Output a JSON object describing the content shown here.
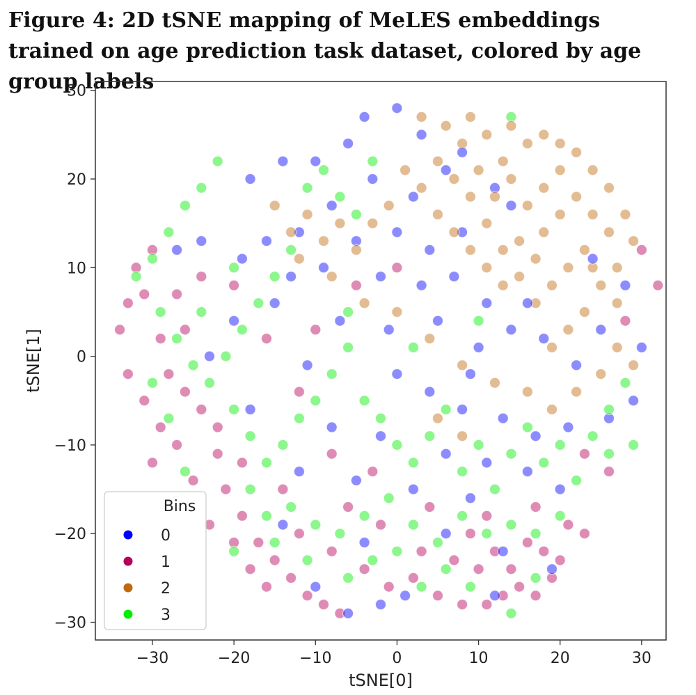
{
  "figure": {
    "title": "Figure 4: 2D tSNE mapping of MeLES embeddings trained on age prediction task dataset, colored by age group labels"
  },
  "chart_data": {
    "type": "scatter",
    "title": "",
    "xlabel": "tSNE[0]",
    "ylabel": "tSNE[1]",
    "xlim": [
      -37,
      33
    ],
    "ylim": [
      -32,
      31
    ],
    "xticks": [
      -30,
      -20,
      -10,
      0,
      10,
      20,
      30
    ],
    "yticks": [
      -30,
      -20,
      -10,
      0,
      10,
      20,
      30
    ],
    "grid": false,
    "legend": {
      "title": "Bins",
      "placement": "lower-left"
    },
    "series": [
      {
        "name": "0",
        "color": "#0000ff",
        "points": [
          [
            0,
            28
          ],
          [
            -4,
            27
          ],
          [
            3,
            25
          ],
          [
            -6,
            24
          ],
          [
            -10,
            22
          ],
          [
            -14,
            22
          ],
          [
            -18,
            20
          ],
          [
            -3,
            20
          ],
          [
            2,
            18
          ],
          [
            6,
            21
          ],
          [
            8,
            23
          ],
          [
            -8,
            17
          ],
          [
            -12,
            14
          ],
          [
            -16,
            13
          ],
          [
            -5,
            13
          ],
          [
            0,
            14
          ],
          [
            4,
            12
          ],
          [
            8,
            14
          ],
          [
            12,
            19
          ],
          [
            14,
            17
          ],
          [
            -2,
            9
          ],
          [
            3,
            8
          ],
          [
            7,
            9
          ],
          [
            11,
            6
          ],
          [
            -9,
            10
          ],
          [
            -13,
            9
          ],
          [
            -19,
            11
          ],
          [
            -24,
            13
          ],
          [
            -27,
            12
          ],
          [
            -20,
            4
          ],
          [
            -15,
            6
          ],
          [
            -7,
            4
          ],
          [
            -1,
            3
          ],
          [
            5,
            4
          ],
          [
            10,
            1
          ],
          [
            14,
            3
          ],
          [
            18,
            2
          ],
          [
            22,
            -1
          ],
          [
            25,
            3
          ],
          [
            28,
            8
          ],
          [
            30,
            1
          ],
          [
            -23,
            0
          ],
          [
            -11,
            -1
          ],
          [
            0,
            -2
          ],
          [
            4,
            -4
          ],
          [
            8,
            -6
          ],
          [
            13,
            -7
          ],
          [
            17,
            -9
          ],
          [
            21,
            -8
          ],
          [
            26,
            -7
          ],
          [
            29,
            -5
          ],
          [
            -18,
            -6
          ],
          [
            -8,
            -8
          ],
          [
            -2,
            -9
          ],
          [
            6,
            -11
          ],
          [
            11,
            -12
          ],
          [
            16,
            -13
          ],
          [
            20,
            -15
          ],
          [
            -12,
            -13
          ],
          [
            -5,
            -14
          ],
          [
            2,
            -15
          ],
          [
            9,
            -16
          ],
          [
            -14,
            -19
          ],
          [
            -4,
            -21
          ],
          [
            6,
            -20
          ],
          [
            13,
            -22
          ],
          [
            19,
            -24
          ],
          [
            -10,
            -26
          ],
          [
            1,
            -27
          ],
          [
            12,
            -27
          ],
          [
            -6,
            -29
          ],
          [
            -2,
            -28
          ],
          [
            9,
            -2
          ],
          [
            16,
            6
          ],
          [
            24,
            11
          ]
        ]
      },
      {
        "name": "1",
        "color": "#b5005a",
        "points": [
          [
            -33,
            6
          ],
          [
            -34,
            3
          ],
          [
            -32,
            10
          ],
          [
            -30,
            12
          ],
          [
            -33,
            -2
          ],
          [
            -31,
            -5
          ],
          [
            -29,
            -8
          ],
          [
            -30,
            -12
          ],
          [
            -27,
            -10
          ],
          [
            -25,
            -14
          ],
          [
            -28,
            -2
          ],
          [
            -26,
            3
          ],
          [
            -24,
            -6
          ],
          [
            -22,
            -11
          ],
          [
            -21,
            -15
          ],
          [
            -19,
            -18
          ],
          [
            -23,
            -19
          ],
          [
            -17,
            -21
          ],
          [
            -15,
            -23
          ],
          [
            -13,
            -25
          ],
          [
            -11,
            -27
          ],
          [
            -9,
            -28
          ],
          [
            -7,
            -29
          ],
          [
            -16,
            -26
          ],
          [
            -18,
            -24
          ],
          [
            -20,
            -21
          ],
          [
            -12,
            -20
          ],
          [
            -8,
            -22
          ],
          [
            -4,
            -24
          ],
          [
            -1,
            -26
          ],
          [
            2,
            -25
          ],
          [
            5,
            -27
          ],
          [
            8,
            -28
          ],
          [
            11,
            -28
          ],
          [
            13,
            -27
          ],
          [
            15,
            -26
          ],
          [
            17,
            -27
          ],
          [
            19,
            -25
          ],
          [
            10,
            -24
          ],
          [
            12,
            -22
          ],
          [
            14,
            -24
          ],
          [
            16,
            -21
          ],
          [
            18,
            -22
          ],
          [
            20,
            -23
          ],
          [
            7,
            -23
          ],
          [
            9,
            -20
          ],
          [
            3,
            -22
          ],
          [
            -2,
            -19
          ],
          [
            -6,
            -17
          ],
          [
            -14,
            -15
          ],
          [
            -19,
            -12
          ],
          [
            -22,
            -8
          ],
          [
            -26,
            -4
          ],
          [
            -29,
            2
          ],
          [
            -31,
            7
          ],
          [
            -27,
            7
          ],
          [
            -24,
            9
          ],
          [
            -20,
            8
          ],
          [
            -16,
            2
          ],
          [
            -12,
            -4
          ],
          [
            -8,
            -11
          ],
          [
            -3,
            -13
          ],
          [
            4,
            -17
          ],
          [
            11,
            -18
          ],
          [
            17,
            -17
          ],
          [
            21,
            -19
          ],
          [
            23,
            -20
          ],
          [
            28,
            4
          ],
          [
            30,
            12
          ],
          [
            32,
            8
          ],
          [
            26,
            -13
          ],
          [
            23,
            -11
          ],
          [
            -10,
            3
          ],
          [
            -5,
            8
          ],
          [
            0,
            10
          ]
        ]
      },
      {
        "name": "2",
        "color": "#c06a10",
        "points": [
          [
            3,
            27
          ],
          [
            6,
            26
          ],
          [
            8,
            24
          ],
          [
            11,
            25
          ],
          [
            13,
            22
          ],
          [
            16,
            24
          ],
          [
            18,
            25
          ],
          [
            20,
            24
          ],
          [
            22,
            23
          ],
          [
            24,
            21
          ],
          [
            26,
            19
          ],
          [
            28,
            16
          ],
          [
            29,
            13
          ],
          [
            27,
            10
          ],
          [
            25,
            8
          ],
          [
            23,
            5
          ],
          [
            21,
            3
          ],
          [
            19,
            1
          ],
          [
            17,
            6
          ],
          [
            15,
            9
          ],
          [
            13,
            12
          ],
          [
            11,
            15
          ],
          [
            9,
            18
          ],
          [
            7,
            20
          ],
          [
            5,
            22
          ],
          [
            10,
            21
          ],
          [
            12,
            18
          ],
          [
            14,
            20
          ],
          [
            16,
            17
          ],
          [
            18,
            19
          ],
          [
            20,
            21
          ],
          [
            22,
            18
          ],
          [
            24,
            16
          ],
          [
            26,
            14
          ],
          [
            23,
            12
          ],
          [
            21,
            10
          ],
          [
            19,
            8
          ],
          [
            17,
            11
          ],
          [
            15,
            13
          ],
          [
            13,
            8
          ],
          [
            11,
            10
          ],
          [
            9,
            12
          ],
          [
            7,
            14
          ],
          [
            5,
            16
          ],
          [
            3,
            19
          ],
          [
            1,
            21
          ],
          [
            -1,
            17
          ],
          [
            -3,
            15
          ],
          [
            -5,
            12
          ],
          [
            -7,
            15
          ],
          [
            -9,
            13
          ],
          [
            -11,
            16
          ],
          [
            -13,
            14
          ],
          [
            -15,
            17
          ],
          [
            -12,
            11
          ],
          [
            -8,
            9
          ],
          [
            -4,
            6
          ],
          [
            0,
            5
          ],
          [
            4,
            2
          ],
          [
            8,
            -1
          ],
          [
            12,
            -3
          ],
          [
            16,
            -4
          ],
          [
            19,
            -6
          ],
          [
            22,
            -4
          ],
          [
            25,
            -2
          ],
          [
            27,
            1
          ],
          [
            29,
            -1
          ],
          [
            5,
            -7
          ],
          [
            8,
            -9
          ],
          [
            18,
            14
          ],
          [
            20,
            16
          ],
          [
            24,
            10
          ],
          [
            27,
            6
          ],
          [
            14,
            26
          ],
          [
            9,
            27
          ]
        ]
      },
      {
        "name": "3",
        "color": "#00ee00",
        "points": [
          [
            14,
            27
          ],
          [
            -22,
            22
          ],
          [
            -24,
            19
          ],
          [
            -26,
            17
          ],
          [
            -28,
            14
          ],
          [
            -30,
            11
          ],
          [
            -32,
            9
          ],
          [
            -29,
            5
          ],
          [
            -27,
            2
          ],
          [
            -25,
            -1
          ],
          [
            -23,
            -3
          ],
          [
            -21,
            0
          ],
          [
            -19,
            3
          ],
          [
            -17,
            6
          ],
          [
            -15,
            9
          ],
          [
            -13,
            12
          ],
          [
            -11,
            19
          ],
          [
            -9,
            21
          ],
          [
            -7,
            18
          ],
          [
            -5,
            16
          ],
          [
            -3,
            22
          ],
          [
            -20,
            -6
          ],
          [
            -18,
            -9
          ],
          [
            -16,
            -12
          ],
          [
            -14,
            -10
          ],
          [
            -12,
            -7
          ],
          [
            -10,
            -5
          ],
          [
            -8,
            -2
          ],
          [
            -6,
            1
          ],
          [
            -4,
            -5
          ],
          [
            -2,
            -7
          ],
          [
            0,
            -10
          ],
          [
            2,
            -12
          ],
          [
            4,
            -9
          ],
          [
            6,
            -6
          ],
          [
            8,
            -13
          ],
          [
            10,
            -10
          ],
          [
            12,
            -15
          ],
          [
            14,
            -11
          ],
          [
            16,
            -8
          ],
          [
            18,
            -12
          ],
          [
            20,
            -10
          ],
          [
            22,
            -14
          ],
          [
            24,
            -9
          ],
          [
            26,
            -11
          ],
          [
            28,
            -3
          ],
          [
            -18,
            -15
          ],
          [
            -16,
            -18
          ],
          [
            -13,
            -17
          ],
          [
            -10,
            -19
          ],
          [
            -7,
            -20
          ],
          [
            -4,
            -18
          ],
          [
            -1,
            -16
          ],
          [
            2,
            -19
          ],
          [
            5,
            -21
          ],
          [
            8,
            -18
          ],
          [
            11,
            -20
          ],
          [
            14,
            -19
          ],
          [
            17,
            -20
          ],
          [
            20,
            -18
          ],
          [
            -20,
            -22
          ],
          [
            -15,
            -21
          ],
          [
            -11,
            -23
          ],
          [
            -6,
            -25
          ],
          [
            -3,
            -23
          ],
          [
            0,
            -22
          ],
          [
            3,
            -26
          ],
          [
            6,
            -24
          ],
          [
            9,
            -26
          ],
          [
            14,
            -29
          ],
          [
            17,
            -25
          ],
          [
            -28,
            -7
          ],
          [
            -26,
            -13
          ],
          [
            -30,
            -3
          ],
          [
            -24,
            5
          ],
          [
            -20,
            10
          ],
          [
            -6,
            5
          ],
          [
            2,
            1
          ],
          [
            10,
            4
          ],
          [
            26,
            -6
          ],
          [
            29,
            -10
          ]
        ]
      }
    ]
  }
}
